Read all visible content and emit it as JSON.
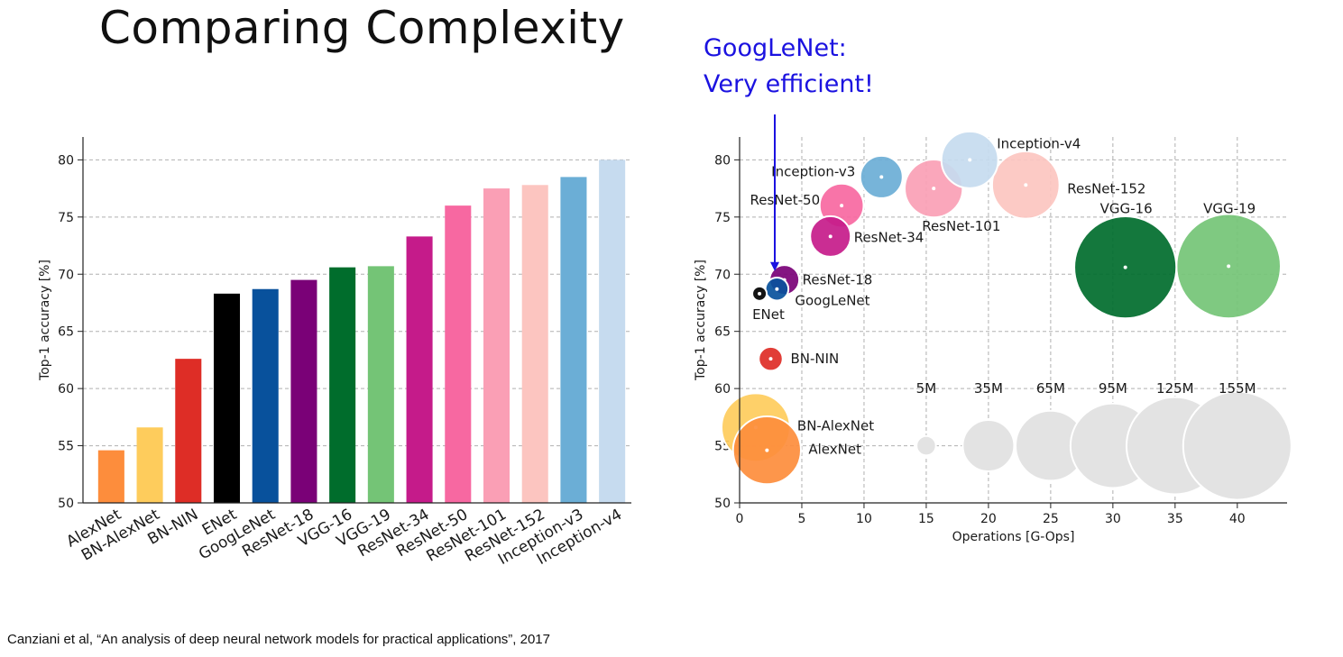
{
  "slide": {
    "title": "Comparing Complexity",
    "annotation_line1": "GoogLeNet:",
    "annotation_line2": "Very efficient!",
    "citation": "Canziani et al, “An analysis of deep neural network models for practical applications”, 2017",
    "annotation_color": "#1b12e0"
  },
  "chart_data": [
    {
      "type": "bar",
      "ylabel": "Top-1 accuracy [%]",
      "xlabel": "",
      "ylim": [
        50,
        82
      ],
      "yticks": [
        50,
        55,
        60,
        65,
        70,
        75,
        80
      ],
      "grid": true,
      "categories": [
        "AlexNet",
        "BN-AlexNet",
        "BN-NIN",
        "ENet",
        "GoogLeNet",
        "ResNet-18",
        "VGG-16",
        "VGG-19",
        "ResNet-34",
        "ResNet-50",
        "ResNet-101",
        "ResNet-152",
        "Inception-v3",
        "Inception-v4"
      ],
      "values": [
        54.6,
        56.6,
        62.6,
        68.3,
        68.7,
        69.5,
        70.6,
        70.7,
        73.3,
        76.0,
        77.5,
        77.8,
        78.5,
        80.0
      ],
      "colors": [
        "#fd8d3c",
        "#fecc5c",
        "#de2d26",
        "#000000",
        "#08519c",
        "#7a0177",
        "#006d2c",
        "#74c476",
        "#c51b8a",
        "#f768a1",
        "#fa9fb5",
        "#fcc5c0",
        "#6baed6",
        "#c6dbef"
      ]
    },
    {
      "type": "scatter",
      "xlabel": "Operations [G-Ops]",
      "ylabel": "Top-1 accuracy [%]",
      "xlim": [
        0,
        44
      ],
      "ylim": [
        50,
        82
      ],
      "xticks": [
        0,
        5,
        10,
        15,
        20,
        25,
        30,
        35,
        40
      ],
      "yticks": [
        50,
        55,
        60,
        65,
        70,
        75,
        80
      ],
      "grid": true,
      "points": [
        {
          "name": "AlexNet",
          "x": 2.2,
          "y": 54.6,
          "params_M": 61,
          "color": "#fd8d3c"
        },
        {
          "name": "BN-AlexNet",
          "x": 1.3,
          "y": 56.6,
          "params_M": 62,
          "color": "#fecc5c"
        },
        {
          "name": "BN-NIN",
          "x": 2.5,
          "y": 62.6,
          "params_M": 7.6,
          "color": "#de2d26"
        },
        {
          "name": "ENet",
          "x": 1.6,
          "y": 68.3,
          "params_M": 0.4,
          "color": "#000000"
        },
        {
          "name": "GoogLeNet",
          "x": 3.0,
          "y": 68.7,
          "params_M": 7,
          "color": "#08519c"
        },
        {
          "name": "ResNet-18",
          "x": 3.6,
          "y": 69.5,
          "params_M": 11.7,
          "color": "#7a0177"
        },
        {
          "name": "VGG-16",
          "x": 31.0,
          "y": 70.6,
          "params_M": 138,
          "color": "#006d2c"
        },
        {
          "name": "VGG-19",
          "x": 39.3,
          "y": 70.7,
          "params_M": 144,
          "color": "#74c476"
        },
        {
          "name": "ResNet-34",
          "x": 7.3,
          "y": 73.3,
          "params_M": 21.8,
          "color": "#c51b8a"
        },
        {
          "name": "ResNet-50",
          "x": 8.2,
          "y": 76.0,
          "params_M": 25.6,
          "color": "#f768a1"
        },
        {
          "name": "ResNet-101",
          "x": 15.6,
          "y": 77.5,
          "params_M": 44.5,
          "color": "#fa9fb5"
        },
        {
          "name": "ResNet-152",
          "x": 23.0,
          "y": 77.8,
          "params_M": 60.2,
          "color": "#fcc5c0"
        },
        {
          "name": "Inception-v3",
          "x": 11.4,
          "y": 78.5,
          "params_M": 23.8,
          "color": "#6baed6"
        },
        {
          "name": "Inception-v4",
          "x": 18.5,
          "y": 80.0,
          "params_M": 42.7,
          "color": "#c6dbef"
        }
      ],
      "size_legend": [
        {
          "label": "5M",
          "params_M": 5,
          "x": 15,
          "y": 55
        },
        {
          "label": "35M",
          "params_M": 35,
          "x": 20,
          "y": 55
        },
        {
          "label": "65M",
          "params_M": 65,
          "x": 25,
          "y": 55
        },
        {
          "label": "95M",
          "params_M": 95,
          "x": 30,
          "y": 55
        },
        {
          "label": "125M",
          "params_M": 125,
          "x": 35,
          "y": 55
        },
        {
          "label": "155M",
          "params_M": 155,
          "x": 40,
          "y": 55
        }
      ],
      "size_legend_color": "#e3e3e3"
    }
  ]
}
